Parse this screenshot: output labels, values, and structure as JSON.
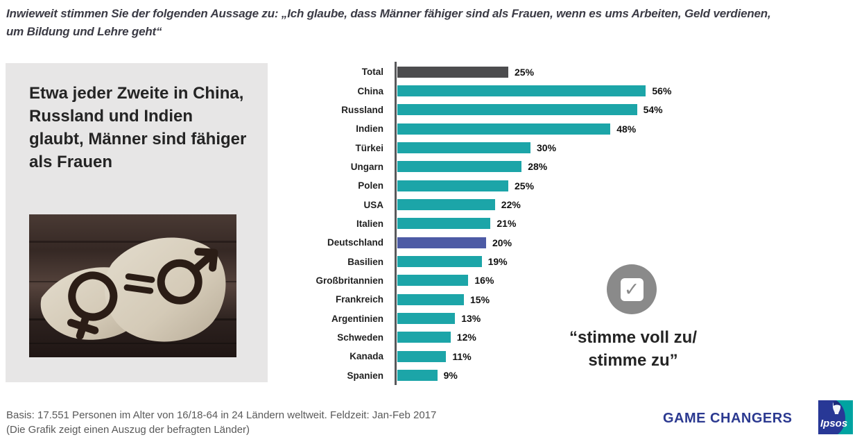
{
  "header": {
    "title_line1": "Inwieweit stimmen Sie der folgenden Aussage zu: „Ich glaube, dass Männer fähiger sind als Frauen, wenn es ums Arbeiten, Geld verdienen,",
    "title_line2": "um Bildung und Lehre geht“"
  },
  "key_finding": {
    "headline": "Etwa jeder Zweite in China, Russland und Indien glaubt, Männer sind fähiger als Frauen"
  },
  "chart_data": {
    "type": "bar",
    "orientation": "horizontal",
    "title": "",
    "xlabel": "",
    "ylabel": "",
    "xlim": [
      0,
      60
    ],
    "grid": false,
    "value_labels_shown": true,
    "categories": [
      "Total",
      "China",
      "Russland",
      "Indien",
      "Türkei",
      "Ungarn",
      "Polen",
      "USA",
      "Italien",
      "Deutschland",
      "Basilien",
      "Großbritannien",
      "Frankreich",
      "Argentinien",
      "Schweden",
      "Kanada",
      "Spanien"
    ],
    "values": [
      25,
      56,
      54,
      48,
      30,
      28,
      25,
      22,
      21,
      20,
      19,
      16,
      15,
      13,
      12,
      11,
      9
    ],
    "value_labels": [
      "25%",
      "56%",
      "54%",
      "48%",
      "30%",
      "28%",
      "25%",
      "22%",
      "21%",
      "20%",
      "19%",
      "16%",
      "15%",
      "13%",
      "12%",
      "11%",
      "9%"
    ],
    "bar_colors": [
      "#4c4c4e",
      "#1ca5a8",
      "#1ca5a8",
      "#1ca5a8",
      "#1ca5a8",
      "#1ca5a8",
      "#1ca5a8",
      "#1ca5a8",
      "#1ca5a8",
      "#4d5ba5",
      "#1ca5a8",
      "#1ca5a8",
      "#1ca5a8",
      "#1ca5a8",
      "#1ca5a8",
      "#1ca5a8",
      "#1ca5a8"
    ],
    "color_legend": {
      "default": "#1ca5a8",
      "total": "#4c4c4e",
      "deutschland_highlight": "#4d5ba5"
    }
  },
  "annotation": {
    "icon": "checkmark-icon",
    "icon_color": "#8a8a8a",
    "check_glyph": "✓",
    "quote_line1": "“stimme voll zu/",
    "quote_line2": "stimme zu”"
  },
  "footer": {
    "basis_line1": "Basis: 17.551 Personen im Alter von 16/18-64 in 24 Ländern weltweit. Feldzeit: Jan-Feb 2017",
    "basis_line2": "(Die Grafik zeigt einen Auszug der befragten Länder)",
    "brand": "GAME CHANGERS",
    "brand_color": "#2b3990",
    "logo_text": "Ipsos"
  }
}
